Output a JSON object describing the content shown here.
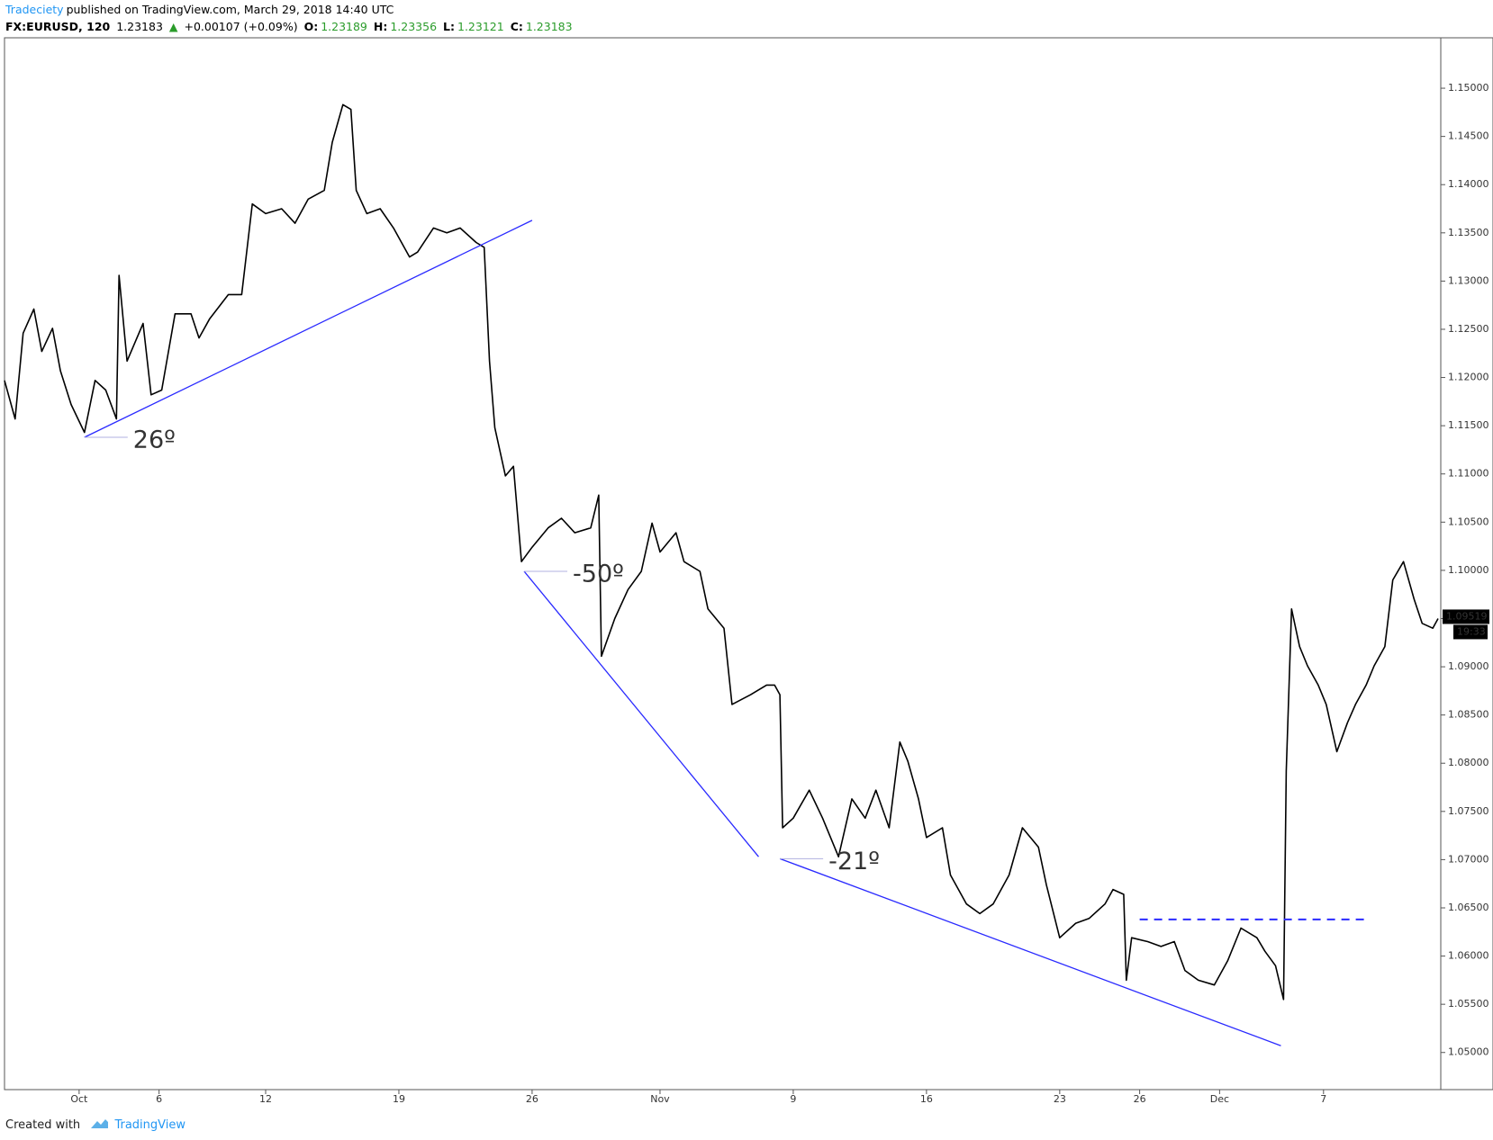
{
  "header": {
    "author": "Tradeciety",
    "published": "published on TradingView.com, March 29, 2018 14:40 UTC",
    "symbol": "FX:EURUSD, 120",
    "last": "1.23183",
    "arrow": "▲",
    "change": "+0.00107 (+0.09%)",
    "o_label": "O:",
    "o": "1.23189",
    "h_label": "H:",
    "h": "1.23356",
    "l_label": "L:",
    "l": "1.23121",
    "c_label": "C:",
    "c": "1.23183"
  },
  "chart_data": {
    "type": "line",
    "color": "#000000",
    "x": [
      0.0,
      0.4,
      0.7,
      1.1,
      1.4,
      1.8,
      2.1,
      2.5,
      3.0,
      3.4,
      3.8,
      4.2,
      4.3,
      4.6,
      5.2,
      5.5,
      5.9,
      6.4,
      7.0,
      7.3,
      7.7,
      8.4,
      8.9,
      9.3,
      9.8,
      10.4,
      10.9,
      11.4,
      12.0,
      12.3,
      12.7,
      13.0,
      13.2,
      13.6,
      14.1,
      14.6,
      15.2,
      15.5,
      16.1,
      16.6,
      17.1,
      17.7,
      18.0,
      18.2,
      18.4,
      18.8,
      19.1,
      19.4,
      19.8,
      20.4,
      20.9,
      21.4,
      22.0,
      22.3,
      22.4,
      22.9,
      23.4,
      23.9,
      24.3,
      24.6,
      25.2,
      25.5,
      26.1,
      26.4,
      27.0,
      27.3,
      28.0,
      28.6,
      28.9,
      29.1,
      29.2,
      29.6,
      30.2,
      30.7,
      31.3,
      31.8,
      32.3,
      32.7,
      33.2,
      33.6,
      33.9,
      34.3,
      34.6,
      35.2,
      35.5,
      36.1,
      36.6,
      37.1,
      37.7,
      38.2,
      38.8,
      39.1,
      39.6,
      40.2,
      40.7,
      41.3,
      41.6,
      42.0,
      42.1,
      42.3,
      42.9,
      43.4,
      43.9,
      44.3,
      44.8,
      45.4,
      45.9,
      46.4,
      47.0,
      47.3,
      47.7,
      48.0,
      48.1,
      48.3,
      48.6,
      48.9,
      49.3,
      49.6,
      50.0,
      50.4,
      50.7,
      51.1,
      51.4,
      51.8,
      52.1,
      52.5,
      52.9,
      53.2,
      53.6,
      53.8
    ],
    "values": [
      1.1197,
      1.1157,
      1.1246,
      1.1271,
      1.1227,
      1.1251,
      1.1207,
      1.1172,
      1.1143,
      1.1197,
      1.1187,
      1.1157,
      1.1306,
      1.1217,
      1.1256,
      1.1182,
      1.1187,
      1.1266,
      1.1266,
      1.1241,
      1.1261,
      1.1286,
      1.1286,
      1.138,
      1.137,
      1.1375,
      1.136,
      1.1385,
      1.1394,
      1.1444,
      1.1483,
      1.1478,
      1.1394,
      1.137,
      1.1375,
      1.1355,
      1.1325,
      1.133,
      1.1355,
      1.135,
      1.1355,
      1.134,
      1.1335,
      1.1217,
      1.1148,
      1.1098,
      1.1108,
      1.1009,
      1.1024,
      1.1044,
      1.1054,
      1.1039,
      1.1044,
      1.1078,
      1.0911,
      1.095,
      1.098,
      1.0999,
      1.1049,
      1.1019,
      1.1039,
      1.1009,
      1.0999,
      1.096,
      1.094,
      1.0861,
      1.0871,
      1.0881,
      1.0881,
      1.0871,
      1.0733,
      1.0743,
      1.0772,
      1.0743,
      1.0703,
      1.0763,
      1.0743,
      1.0772,
      1.0733,
      1.0822,
      1.0802,
      1.0763,
      1.0723,
      1.0733,
      1.0684,
      1.0654,
      1.0644,
      1.0654,
      1.0684,
      1.0733,
      1.0713,
      1.0674,
      1.0619,
      1.0634,
      1.0639,
      1.0654,
      1.0669,
      1.0664,
      1.0575,
      1.0619,
      1.0615,
      1.061,
      1.0615,
      1.0585,
      1.0575,
      1.057,
      1.0595,
      1.0629,
      1.0619,
      1.0605,
      1.059,
      1.0555,
      1.0792,
      1.096,
      1.0921,
      1.0901,
      1.0881,
      1.0861,
      1.0812,
      1.0842,
      1.0861,
      1.0881,
      1.0901,
      1.0921,
      1.099,
      1.1009,
      1.097,
      1.0945,
      1.094,
      1.095
    ],
    "xlim": [
      0,
      53.9
    ],
    "ylim": [
      1.04615,
      1.15523
    ],
    "xticks": [
      {
        "value": 2.8,
        "label": "Oct"
      },
      {
        "value": 5.8,
        "label": "6"
      },
      {
        "value": 9.8,
        "label": "12"
      },
      {
        "value": 14.8,
        "label": "19"
      },
      {
        "value": 19.8,
        "label": "26"
      },
      {
        "value": 24.6,
        "label": "Nov"
      },
      {
        "value": 29.6,
        "label": "9"
      },
      {
        "value": 34.6,
        "label": "16"
      },
      {
        "value": 39.6,
        "label": "23"
      },
      {
        "value": 42.6,
        "label": "26"
      },
      {
        "value": 45.6,
        "label": "Dec"
      },
      {
        "value": 49.5,
        "label": "7"
      }
    ],
    "yticks": [
      {
        "value": 1.05,
        "label": "1.05000"
      },
      {
        "value": 1.055,
        "label": "1.05500"
      },
      {
        "value": 1.06,
        "label": "1.06000"
      },
      {
        "value": 1.065,
        "label": "1.06500"
      },
      {
        "value": 1.07,
        "label": "1.07000"
      },
      {
        "value": 1.075,
        "label": "1.07500"
      },
      {
        "value": 1.08,
        "label": "1.08000"
      },
      {
        "value": 1.085,
        "label": "1.08500"
      },
      {
        "value": 1.09,
        "label": "1.09000"
      },
      {
        "value": 1.095,
        "label": "1.09500"
      },
      {
        "value": 1.1,
        "label": "1.10000"
      },
      {
        "value": 1.105,
        "label": "1.10500"
      },
      {
        "value": 1.11,
        "label": "1.11000"
      },
      {
        "value": 1.115,
        "label": "1.11500"
      },
      {
        "value": 1.12,
        "label": "1.12000"
      },
      {
        "value": 1.125,
        "label": "1.12500"
      },
      {
        "value": 1.13,
        "label": "1.13000"
      },
      {
        "value": 1.135,
        "label": "1.13500"
      },
      {
        "value": 1.14,
        "label": "1.14000"
      },
      {
        "value": 1.145,
        "label": "1.14500"
      },
      {
        "value": 1.15,
        "label": "1.15000"
      }
    ],
    "last_price": 1.09519,
    "last_time": "19:33",
    "trendlines": [
      {
        "x": [
          3.0,
          19.8
        ],
        "y": [
          1.1138,
          1.1363
        ],
        "color": "#2a2aff",
        "label": "26º"
      },
      {
        "x": [
          19.5,
          28.3
        ],
        "y": [
          1.0999,
          1.0703
        ],
        "color": "#2a2aff",
        "label": "-50º"
      },
      {
        "x": [
          29.1,
          47.9
        ],
        "y": [
          1.0701,
          1.0507
        ],
        "color": "#2a2aff",
        "label": "-21º"
      },
      {
        "x": [
          42.6,
          51.2
        ],
        "y": [
          1.0638,
          1.0638
        ],
        "color": "#2a2aff",
        "dashed": true
      }
    ]
  },
  "footer": {
    "created": "Created with",
    "brand": "TradingView"
  }
}
